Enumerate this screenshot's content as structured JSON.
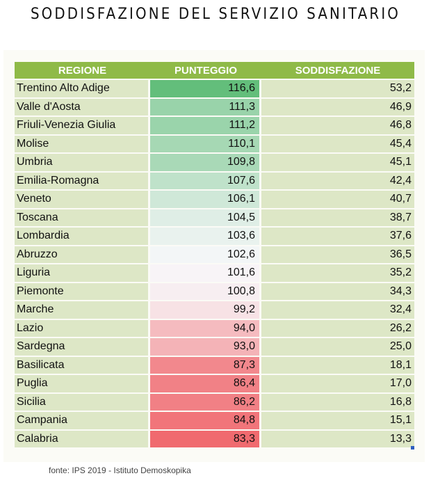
{
  "chart_data": {
    "type": "table",
    "title": "SODDISFAZIONE DEL SERVIZIO SANITARIO",
    "columns": [
      "REGIONE",
      "PUNTEGGIO",
      "SODDISFAZIONE"
    ],
    "rows": [
      {
        "region": "Trentino Alto Adige",
        "score": "116,6",
        "satisfaction": "53,2"
      },
      {
        "region": "Valle d'Aosta",
        "score": "111,3",
        "satisfaction": "46,9"
      },
      {
        "region": "Friuli-Venezia Giulia",
        "score": "111,2",
        "satisfaction": "46,8"
      },
      {
        "region": "Molise",
        "score": "110,1",
        "satisfaction": "45,4"
      },
      {
        "region": "Umbria",
        "score": "109,8",
        "satisfaction": "45,1"
      },
      {
        "region": "Emilia-Romagna",
        "score": "107,6",
        "satisfaction": "42,4"
      },
      {
        "region": "Veneto",
        "score": "106,1",
        "satisfaction": "40,7"
      },
      {
        "region": "Toscana",
        "score": "104,5",
        "satisfaction": "38,7"
      },
      {
        "region": "Lombardia",
        "score": "103,6",
        "satisfaction": "37,6"
      },
      {
        "region": "Abruzzo",
        "score": "102,6",
        "satisfaction": "36,5"
      },
      {
        "region": "Liguria",
        "score": "101,6",
        "satisfaction": "35,2"
      },
      {
        "region": "Piemonte",
        "score": "100,8",
        "satisfaction": "34,3"
      },
      {
        "region": "Marche",
        "score": "99,2",
        "satisfaction": "32,4"
      },
      {
        "region": "Lazio",
        "score": "94,0",
        "satisfaction": "26,2"
      },
      {
        "region": "Sardegna",
        "score": "93,0",
        "satisfaction": "25,0"
      },
      {
        "region": "Basilicata",
        "score": "87,3",
        "satisfaction": "18,1"
      },
      {
        "region": "Puglia",
        "score": "86,4",
        "satisfaction": "17,0"
      },
      {
        "region": "Sicilia",
        "score": "86,2",
        "satisfaction": "16,8"
      },
      {
        "region": "Campania",
        "score": "84,8",
        "satisfaction": "15,1"
      },
      {
        "region": "Calabria",
        "score": "83,3",
        "satisfaction": "13,3"
      }
    ],
    "heatmap_column": "PUNTEGGIO",
    "heatmap_colors": {
      "high": "#63be7b",
      "mid": "#f8f8fb",
      "low": "#f06a6f"
    },
    "header_color": "#8fba48",
    "row_color": "#dde7c6"
  },
  "footer": "fonte: IPS 2019 - Istituto Demoskopika"
}
